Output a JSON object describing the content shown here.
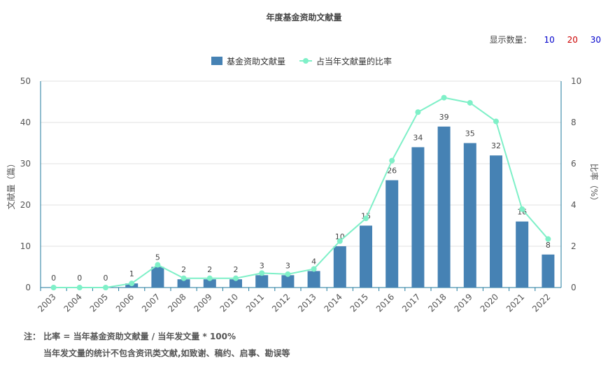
{
  "chart_data": {
    "type": "bar",
    "title": "年度基金资助文献量",
    "categories": [
      "2003",
      "2004",
      "2005",
      "2006",
      "2007",
      "2008",
      "2009",
      "2010",
      "2011",
      "2012",
      "2013",
      "2014",
      "2015",
      "2016",
      "2017",
      "2018",
      "2019",
      "2020",
      "2021",
      "2022"
    ],
    "series": [
      {
        "name": "基金资助文献量",
        "type": "bar",
        "axis": "left",
        "color": "#4682b4",
        "values": [
          0,
          0,
          0,
          1,
          5,
          2,
          2,
          2,
          3,
          3,
          4,
          10,
          15,
          26,
          34,
          39,
          35,
          32,
          16,
          8
        ]
      },
      {
        "name": "占当年文献量的比率",
        "type": "line",
        "axis": "right",
        "color": "#7ff0c8",
        "values": [
          0,
          0,
          0,
          0.2,
          1.1,
          0.45,
          0.45,
          0.45,
          0.7,
          0.65,
          0.9,
          2.25,
          3.35,
          6.15,
          8.5,
          9.2,
          8.95,
          8.05,
          3.8,
          2.35
        ]
      }
    ],
    "ylabel_left": "文献量（篇）",
    "ylabel_right": "比率（%）",
    "ylim_left": [
      0,
      50
    ],
    "ylim_right": [
      0,
      10
    ],
    "yticks_left": [
      "0",
      "10",
      "20",
      "30",
      "40",
      "50"
    ],
    "yticks_right": [
      "0",
      "2",
      "4",
      "6",
      "8",
      "10"
    ],
    "grid": true,
    "legend": "top-center"
  },
  "controls": {
    "display_label": "显示数量：",
    "options": [
      {
        "label": "10",
        "color": "#0000cc"
      },
      {
        "label": "20",
        "color": "#cc0000"
      },
      {
        "label": "30",
        "color": "#0000cc"
      }
    ]
  },
  "notes": {
    "line1": "注： 比率 = 当年基金资助文献量 / 当年发文量 * 100%",
    "line2": "当年发文量的统计不包含资讯类文献,如致谢、稿约、启事、勘误等"
  }
}
